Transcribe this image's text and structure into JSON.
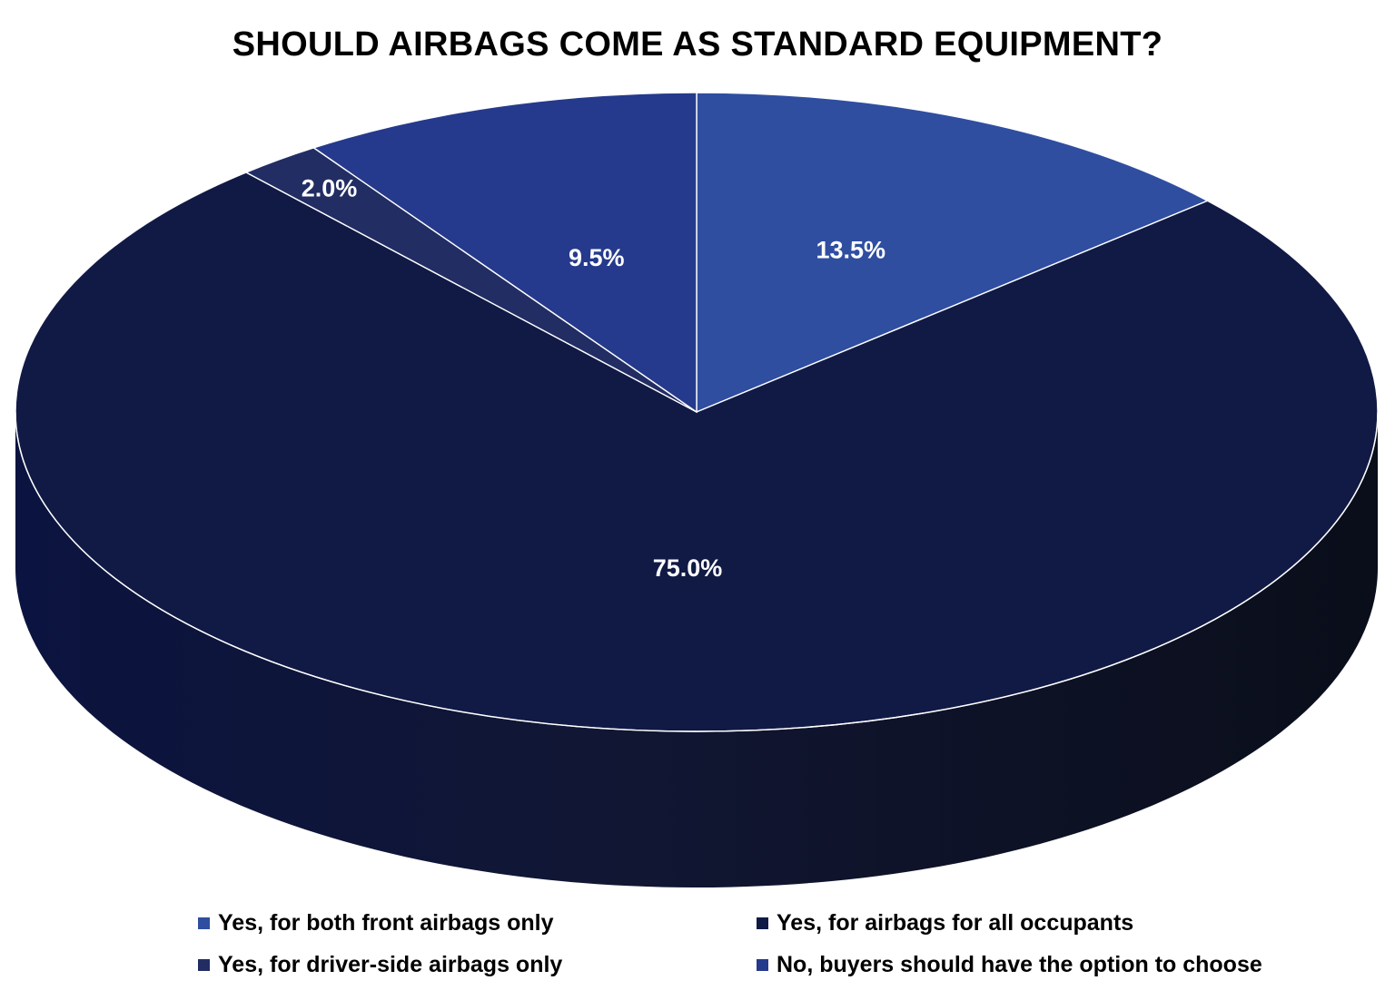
{
  "chart_data": {
    "type": "pie",
    "title": "SHOULD AIRBAGS COME AS STANDARD EQUIPMENT?",
    "categories": [
      "Yes, for both front airbags only",
      "Yes, for airbags for all occupants",
      "Yes, for driver-side airbags only",
      "No, buyers should have the option to choose"
    ],
    "values": [
      13.5,
      75.0,
      2.0,
      9.5
    ],
    "labels": [
      "13.5%",
      "75.0%",
      "2.0%",
      "9.5%"
    ],
    "colors": [
      "#2F4EA0",
      "#111A45",
      "#222D63",
      "#253A8C"
    ],
    "legend_position": "bottom",
    "style": "3d"
  }
}
